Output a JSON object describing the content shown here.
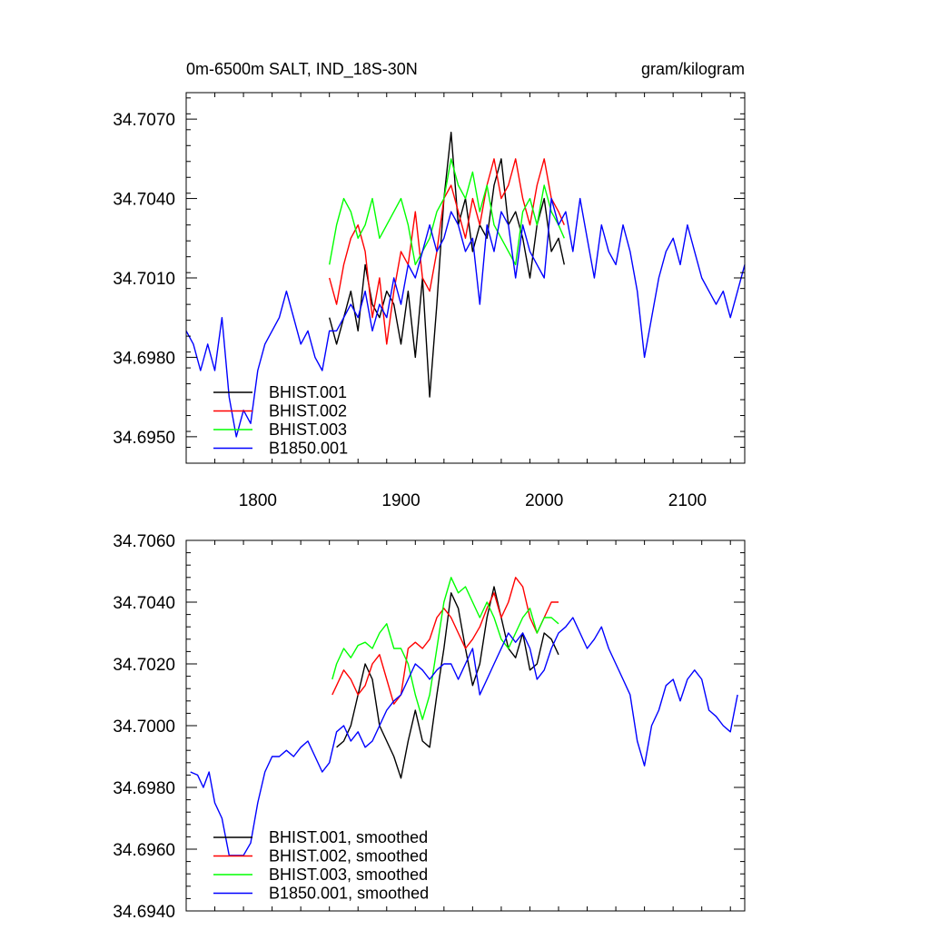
{
  "chart_data": [
    {
      "type": "line",
      "title": "0m-6500m SALT, IND_18S-30N",
      "units": "gram/kilogram",
      "xlim": [
        1750,
        2140
      ],
      "ylim": [
        34.694,
        34.708
      ],
      "xticks": [
        1800,
        1900,
        2000,
        2100
      ],
      "yticks": [
        34.695,
        34.698,
        34.701,
        34.704,
        34.707
      ],
      "ytick_labels": [
        "34.6950",
        "34.6980",
        "34.7010",
        "34.7040",
        "34.7070"
      ],
      "show_xtick_labels": true,
      "legend_position": "lower-left",
      "series": [
        {
          "name": "BHIST.001",
          "color": "#000000",
          "x": [
            1850,
            1855,
            1860,
            1865,
            1870,
            1875,
            1880,
            1885,
            1890,
            1895,
            1900,
            1905,
            1910,
            1915,
            1920,
            1925,
            1930,
            1935,
            1940,
            1945,
            1950,
            1955,
            1960,
            1965,
            1970,
            1975,
            1980,
            1985,
            1990,
            1995,
            2000,
            2005,
            2010,
            2014
          ],
          "y": [
            34.6995,
            34.6985,
            34.6995,
            34.7005,
            34.699,
            34.7015,
            34.7,
            34.6995,
            34.7005,
            34.7,
            34.6985,
            34.7005,
            34.698,
            34.701,
            34.6965,
            34.7,
            34.704,
            34.7065,
            34.703,
            34.704,
            34.702,
            34.703,
            34.7025,
            34.7045,
            34.7055,
            34.703,
            34.7035,
            34.7025,
            34.701,
            34.703,
            34.704,
            34.702,
            34.7025,
            34.7015
          ]
        },
        {
          "name": "BHIST.002",
          "color": "#ff0000",
          "x": [
            1850,
            1855,
            1860,
            1865,
            1870,
            1875,
            1880,
            1885,
            1890,
            1895,
            1900,
            1905,
            1910,
            1915,
            1920,
            1925,
            1930,
            1935,
            1940,
            1945,
            1950,
            1955,
            1960,
            1965,
            1970,
            1975,
            1980,
            1985,
            1990,
            1995,
            2000,
            2005,
            2010,
            2014
          ],
          "y": [
            34.701,
            34.7,
            34.7015,
            34.7025,
            34.703,
            34.702,
            34.6995,
            34.701,
            34.6985,
            34.7005,
            34.702,
            34.7015,
            34.7035,
            34.701,
            34.7005,
            34.702,
            34.704,
            34.7045,
            34.7035,
            34.7025,
            34.704,
            34.703,
            34.7045,
            34.7055,
            34.704,
            34.7045,
            34.7055,
            34.704,
            34.703,
            34.7045,
            34.7055,
            34.704,
            34.7035,
            34.703
          ]
        },
        {
          "name": "BHIST.003",
          "color": "#00ff00",
          "x": [
            1850,
            1855,
            1860,
            1865,
            1870,
            1875,
            1880,
            1885,
            1890,
            1895,
            1900,
            1905,
            1910,
            1915,
            1920,
            1925,
            1930,
            1935,
            1940,
            1945,
            1950,
            1955,
            1960,
            1965,
            1970,
            1975,
            1980,
            1985,
            1990,
            1995,
            2000,
            2005,
            2010,
            2014
          ],
          "y": [
            34.7015,
            34.703,
            34.704,
            34.7035,
            34.7025,
            34.703,
            34.704,
            34.7025,
            34.703,
            34.7035,
            34.704,
            34.703,
            34.7015,
            34.702,
            34.7025,
            34.7035,
            34.704,
            34.7055,
            34.7045,
            34.704,
            34.705,
            34.7035,
            34.7045,
            34.703,
            34.7025,
            34.702,
            34.7015,
            34.7035,
            34.704,
            34.703,
            34.7045,
            34.7035,
            34.703,
            34.7025
          ]
        },
        {
          "name": "B1850.001",
          "color": "#0000ff",
          "x": [
            1750,
            1755,
            1760,
            1765,
            1770,
            1775,
            1780,
            1785,
            1790,
            1795,
            1800,
            1805,
            1810,
            1815,
            1820,
            1825,
            1830,
            1835,
            1840,
            1845,
            1850,
            1855,
            1860,
            1865,
            1870,
            1875,
            1880,
            1885,
            1890,
            1895,
            1900,
            1905,
            1910,
            1915,
            1920,
            1925,
            1930,
            1935,
            1940,
            1945,
            1950,
            1955,
            1960,
            1965,
            1970,
            1975,
            1980,
            1985,
            1990,
            1995,
            2000,
            2005,
            2010,
            2015,
            2020,
            2025,
            2030,
            2035,
            2040,
            2045,
            2050,
            2055,
            2060,
            2065,
            2070,
            2075,
            2080,
            2085,
            2090,
            2095,
            2100,
            2105,
            2110,
            2115,
            2120,
            2125,
            2130,
            2135,
            2140
          ],
          "y": [
            34.699,
            34.6985,
            34.6975,
            34.6985,
            34.6975,
            34.6995,
            34.6965,
            34.695,
            34.696,
            34.6955,
            34.6975,
            34.6985,
            34.699,
            34.6995,
            34.7005,
            34.6995,
            34.6985,
            34.699,
            34.698,
            34.6975,
            34.699,
            34.699,
            34.6995,
            34.7,
            34.6995,
            34.7005,
            34.699,
            34.7,
            34.6995,
            34.701,
            34.7,
            34.7015,
            34.701,
            34.702,
            34.703,
            34.702,
            34.7025,
            34.7035,
            34.703,
            34.702,
            34.7025,
            34.7,
            34.703,
            34.702,
            34.7035,
            34.703,
            34.701,
            34.703,
            34.702,
            34.7015,
            34.701,
            34.704,
            34.703,
            34.7035,
            34.702,
            34.704,
            34.7025,
            34.701,
            34.703,
            34.702,
            34.7015,
            34.703,
            34.702,
            34.7005,
            34.698,
            34.6995,
            34.701,
            34.702,
            34.7025,
            34.7015,
            34.703,
            34.702,
            34.701,
            34.7005,
            34.7,
            34.7005,
            34.6995,
            34.7005,
            34.7015
          ]
        }
      ]
    },
    {
      "type": "line",
      "title": "",
      "xlim": [
        1750,
        2140
      ],
      "ylim": [
        34.694,
        34.706
      ],
      "xticks": [
        1800,
        1900,
        2000,
        2100
      ],
      "yticks": [
        34.694,
        34.696,
        34.698,
        34.7,
        34.702,
        34.704,
        34.706
      ],
      "ytick_labels": [
        "34.6940",
        "34.6960",
        "34.6980",
        "34.7000",
        "34.7020",
        "34.7040",
        "34.7060"
      ],
      "show_xtick_labels": false,
      "legend_position": "lower-left",
      "series": [
        {
          "name": "BHIST.001, smoothed",
          "color": "#000000",
          "x": [
            1855,
            1860,
            1865,
            1870,
            1875,
            1880,
            1885,
            1890,
            1895,
            1900,
            1905,
            1910,
            1915,
            1920,
            1925,
            1930,
            1935,
            1940,
            1945,
            1950,
            1955,
            1960,
            1965,
            1970,
            1975,
            1980,
            1985,
            1990,
            1995,
            2000,
            2005,
            2010
          ],
          "y": [
            34.6993,
            34.6995,
            34.7,
            34.701,
            34.702,
            34.7015,
            34.7,
            34.6995,
            34.699,
            34.6983,
            34.6995,
            34.7005,
            34.6995,
            34.6993,
            34.701,
            34.7025,
            34.7043,
            34.7038,
            34.7025,
            34.7013,
            34.702,
            34.7035,
            34.7045,
            34.7035,
            34.7025,
            34.7022,
            34.703,
            34.7018,
            34.702,
            34.703,
            34.7028,
            34.7023
          ]
        },
        {
          "name": "BHIST.002, smoothed",
          "color": "#ff0000",
          "x": [
            1852,
            1855,
            1860,
            1865,
            1870,
            1875,
            1880,
            1885,
            1890,
            1895,
            1900,
            1905,
            1910,
            1915,
            1920,
            1925,
            1930,
            1935,
            1940,
            1945,
            1950,
            1955,
            1960,
            1965,
            1970,
            1975,
            1980,
            1985,
            1990,
            1995,
            2000,
            2005,
            2010
          ],
          "y": [
            34.701,
            34.7013,
            34.7018,
            34.7015,
            34.701,
            34.7013,
            34.702,
            34.7023,
            34.7015,
            34.7007,
            34.701,
            34.7025,
            34.7027,
            34.7025,
            34.7028,
            34.7035,
            34.7038,
            34.7035,
            34.703,
            34.7025,
            34.7028,
            34.7032,
            34.7038,
            34.7043,
            34.7035,
            34.704,
            34.7048,
            34.7045,
            34.7035,
            34.703,
            34.7035,
            34.704,
            34.704
          ]
        },
        {
          "name": "BHIST.003, smoothed",
          "color": "#00ff00",
          "x": [
            1852,
            1855,
            1860,
            1865,
            1870,
            1875,
            1880,
            1885,
            1890,
            1895,
            1900,
            1905,
            1910,
            1915,
            1920,
            1925,
            1930,
            1935,
            1940,
            1945,
            1950,
            1955,
            1960,
            1965,
            1970,
            1975,
            1980,
            1985,
            1990,
            1995,
            2000,
            2005,
            2010
          ],
          "y": [
            34.7015,
            34.702,
            34.7025,
            34.7022,
            34.7026,
            34.7027,
            34.7025,
            34.703,
            34.7033,
            34.7025,
            34.7025,
            34.702,
            34.701,
            34.7002,
            34.701,
            34.7025,
            34.704,
            34.7048,
            34.7043,
            34.7045,
            34.704,
            34.7035,
            34.704,
            34.7035,
            34.7028,
            34.7025,
            34.703,
            34.7035,
            34.7038,
            34.703,
            34.7035,
            34.7035,
            34.7033
          ]
        },
        {
          "name": "B1850.001, smoothed",
          "color": "#0000ff",
          "x": [
            1753,
            1758,
            1762,
            1766,
            1770,
            1775,
            1780,
            1785,
            1790,
            1795,
            1800,
            1805,
            1810,
            1815,
            1820,
            1825,
            1830,
            1835,
            1840,
            1845,
            1850,
            1855,
            1860,
            1865,
            1870,
            1875,
            1880,
            1885,
            1890,
            1895,
            1900,
            1905,
            1910,
            1915,
            1920,
            1925,
            1930,
            1935,
            1940,
            1945,
            1950,
            1955,
            1960,
            1965,
            1970,
            1975,
            1980,
            1985,
            1990,
            1995,
            2000,
            2005,
            2010,
            2015,
            2020,
            2025,
            2030,
            2035,
            2040,
            2045,
            2050,
            2055,
            2060,
            2065,
            2070,
            2075,
            2080,
            2085,
            2090,
            2095,
            2100,
            2105,
            2110,
            2115,
            2120,
            2125,
            2130,
            2135
          ],
          "y": [
            34.6985,
            34.6984,
            34.698,
            34.6985,
            34.6975,
            34.697,
            34.6958,
            34.6958,
            34.6958,
            34.6962,
            34.6975,
            34.6985,
            34.699,
            34.699,
            34.6992,
            34.699,
            34.6993,
            34.6995,
            34.699,
            34.6985,
            34.6988,
            34.6998,
            34.7,
            34.6995,
            34.6998,
            34.6993,
            34.6995,
            34.7,
            34.7005,
            34.7008,
            34.701,
            34.7015,
            34.702,
            34.7018,
            34.7015,
            34.7018,
            34.702,
            34.702,
            34.7015,
            34.702,
            34.7025,
            34.701,
            34.7015,
            34.702,
            34.7025,
            34.703,
            34.7027,
            34.703,
            34.7025,
            34.7015,
            34.7018,
            34.7025,
            34.703,
            34.7032,
            34.7035,
            34.703,
            34.7025,
            34.7028,
            34.7032,
            34.7025,
            34.702,
            34.7015,
            34.701,
            34.6995,
            34.6987,
            34.7,
            34.7005,
            34.7013,
            34.7015,
            34.7008,
            34.7015,
            34.7018,
            34.7015,
            34.7005,
            34.7003,
            34.7,
            34.6998,
            34.701
          ]
        }
      ]
    }
  ]
}
